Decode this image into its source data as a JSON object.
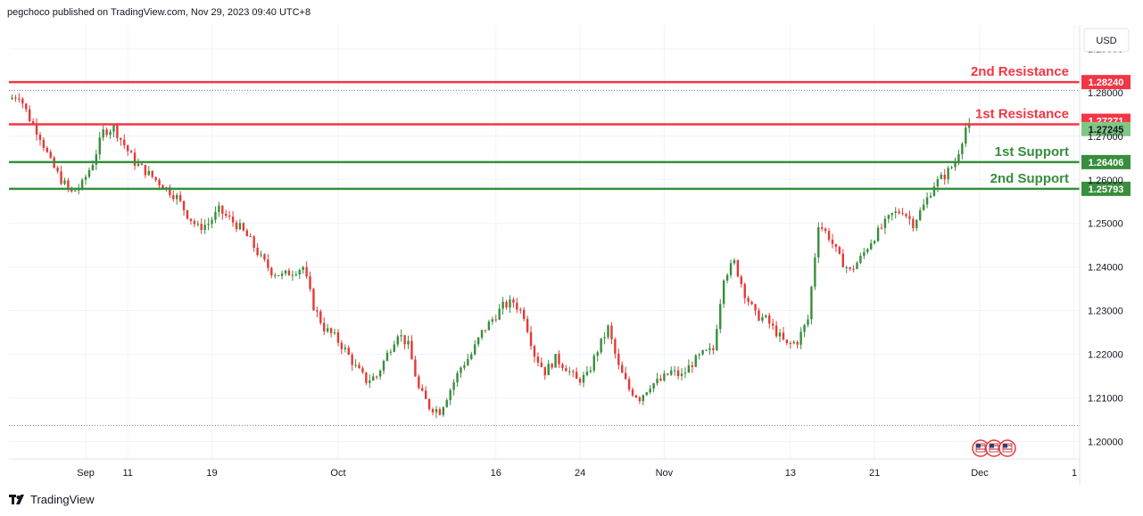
{
  "header": {
    "attribution": "pegchoco published on TradingView.com, Nov 29, 2023 09:40 UTC+8"
  },
  "footer": {
    "brand": "TradingView"
  },
  "chart_data": {
    "type": "candlestick",
    "currency": "USD",
    "ylim": [
      1.196,
      1.2955
    ],
    "y_ticks": [
      "1.29000",
      "1.28000",
      "1.27000",
      "1.26000",
      "1.25000",
      "1.24000",
      "1.23000",
      "1.22000",
      "1.21000",
      "1.20000"
    ],
    "y_tick_values": [
      1.29,
      1.28,
      1.27,
      1.26,
      1.25,
      1.24,
      1.23,
      1.22,
      1.21,
      1.2
    ],
    "x_ticks": [
      {
        "label": "Sep",
        "day": 7
      },
      {
        "label": "11",
        "day": 11
      },
      {
        "label": "19",
        "day": 19
      },
      {
        "label": "Oct",
        "day": 31
      },
      {
        "label": "16",
        "day": 46
      },
      {
        "label": "24",
        "day": 54
      },
      {
        "label": "Nov",
        "day": 62
      },
      {
        "label": "13",
        "day": 74
      },
      {
        "label": "21",
        "day": 82
      },
      {
        "label": "Dec",
        "day": 92
      },
      {
        "label": "1",
        "day": 101
      }
    ],
    "levels": [
      {
        "label": "2nd Resistance",
        "value": 1.2824,
        "value_label": "1.28240",
        "kind": "resistance",
        "color": "#f23645"
      },
      {
        "label": "1st Resistance",
        "value": 1.27271,
        "value_label": "1.27271",
        "kind": "resistance",
        "color": "#f23645"
      },
      {
        "label": "1st Support",
        "value": 1.26406,
        "value_label": "1.26406",
        "kind": "support",
        "color": "#388e3c"
      },
      {
        "label": "2nd Support",
        "value": 1.25793,
        "value_label": "1.25793",
        "kind": "support",
        "color": "#388e3c"
      }
    ],
    "last_price": {
      "value": 1.27245,
      "value_label": "1.27245",
      "color": "#81c784"
    },
    "dotted_levels": [
      1.2805,
      1.2037
    ],
    "colors": {
      "up": "#388e3c",
      "down": "#e53935",
      "grid": "#f0f3fa"
    },
    "path_anchors": [
      [
        0,
        1.2785
      ],
      [
        1,
        1.2795
      ],
      [
        2,
        1.274
      ],
      [
        3,
        1.27
      ],
      [
        4,
        1.264
      ],
      [
        5,
        1.26
      ],
      [
        6,
        1.257
      ],
      [
        7,
        1.259
      ],
      [
        8,
        1.264
      ],
      [
        9,
        1.271
      ],
      [
        10,
        1.272
      ],
      [
        11,
        1.268
      ],
      [
        12,
        1.264
      ],
      [
        13,
        1.262
      ],
      [
        14,
        1.26
      ],
      [
        15,
        1.258
      ],
      [
        16,
        1.256
      ],
      [
        17,
        1.252
      ],
      [
        18,
        1.249
      ],
      [
        19,
        1.25
      ],
      [
        20,
        1.253
      ],
      [
        21,
        1.251
      ],
      [
        22,
        1.249
      ],
      [
        23,
        1.246
      ],
      [
        24,
        1.242
      ],
      [
        25,
        1.239
      ],
      [
        26,
        1.238
      ],
      [
        27,
        1.239
      ],
      [
        28,
        1.24
      ],
      [
        29,
        1.231
      ],
      [
        30,
        1.226
      ],
      [
        31,
        1.224
      ],
      [
        32,
        1.221
      ],
      [
        33,
        1.217
      ],
      [
        34,
        1.214
      ],
      [
        35,
        1.215
      ],
      [
        36,
        1.22
      ],
      [
        37,
        1.225
      ],
      [
        38,
        1.222
      ],
      [
        39,
        1.212
      ],
      [
        40,
        1.208
      ],
      [
        41,
        1.207
      ],
      [
        42,
        1.212
      ],
      [
        43,
        1.217
      ],
      [
        44,
        1.22
      ],
      [
        45,
        1.225
      ],
      [
        46,
        1.228
      ],
      [
        47,
        1.231
      ],
      [
        48,
        1.232
      ],
      [
        49,
        1.229
      ],
      [
        50,
        1.22
      ],
      [
        51,
        1.216
      ],
      [
        52,
        1.219
      ],
      [
        53,
        1.217
      ],
      [
        54,
        1.214
      ],
      [
        55,
        1.215
      ],
      [
        56,
        1.221
      ],
      [
        57,
        1.226
      ],
      [
        58,
        1.217
      ],
      [
        59,
        1.212
      ],
      [
        60,
        1.21
      ],
      [
        61,
        1.213
      ],
      [
        62,
        1.214
      ],
      [
        63,
        1.216
      ],
      [
        64,
        1.215
      ],
      [
        65,
        1.218
      ],
      [
        66,
        1.22
      ],
      [
        67,
        1.221
      ],
      [
        68,
        1.238
      ],
      [
        69,
        1.241
      ],
      [
        70,
        1.234
      ],
      [
        71,
        1.229
      ],
      [
        72,
        1.228
      ],
      [
        73,
        1.225
      ],
      [
        74,
        1.222
      ],
      [
        75,
        1.223
      ],
      [
        76,
        1.228
      ],
      [
        77,
        1.25
      ],
      [
        78,
        1.247
      ],
      [
        79,
        1.242
      ],
      [
        80,
        1.239
      ],
      [
        81,
        1.242
      ],
      [
        82,
        1.246
      ],
      [
        83,
        1.249
      ],
      [
        84,
        1.252
      ],
      [
        85,
        1.253
      ],
      [
        86,
        1.25
      ],
      [
        87,
        1.254
      ],
      [
        88,
        1.259
      ],
      [
        89,
        1.261
      ],
      [
        90,
        1.264
      ],
      [
        91,
        1.272
      ]
    ]
  }
}
